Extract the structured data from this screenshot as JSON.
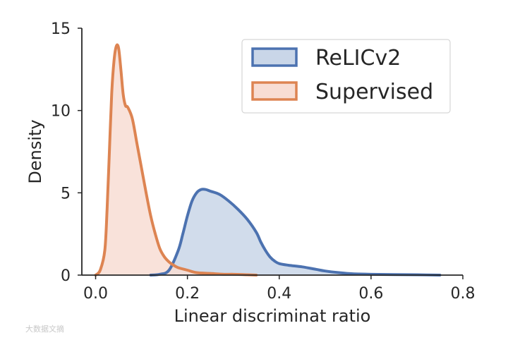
{
  "chart_data": {
    "type": "area",
    "title": "",
    "xlabel": "Linear discriminat ratio",
    "ylabel": "Density",
    "xlim": [
      -0.03,
      0.8
    ],
    "ylim": [
      0,
      15
    ],
    "xticks": [
      0.0,
      0.2,
      0.4,
      0.6,
      0.8
    ],
    "xtick_labels": [
      "0.0",
      "0.2",
      "0.4",
      "0.6",
      "0.8"
    ],
    "yticks": [
      0,
      5,
      10,
      15
    ],
    "ytick_labels": [
      "0",
      "5",
      "10",
      "15"
    ],
    "grid": false,
    "legend_position": "top-right",
    "series": [
      {
        "name": "ReLICv2",
        "line_color": "#4c72b0",
        "fill_color": "#c9d6e8",
        "x": [
          0.12,
          0.14,
          0.16,
          0.18,
          0.19,
          0.2,
          0.21,
          0.22,
          0.23,
          0.24,
          0.25,
          0.27,
          0.29,
          0.31,
          0.33,
          0.35,
          0.36,
          0.37,
          0.38,
          0.39,
          0.4,
          0.42,
          0.45,
          0.48,
          0.5,
          0.53,
          0.56,
          0.6,
          0.65,
          0.7,
          0.75
        ],
        "y": [
          0.0,
          0.05,
          0.3,
          1.5,
          2.5,
          3.6,
          4.5,
          5.0,
          5.2,
          5.2,
          5.1,
          4.9,
          4.5,
          4.0,
          3.4,
          2.6,
          2.0,
          1.5,
          1.1,
          0.85,
          0.7,
          0.6,
          0.5,
          0.35,
          0.25,
          0.15,
          0.08,
          0.05,
          0.03,
          0.02,
          0.0
        ]
      },
      {
        "name": "Supervised",
        "line_color": "#dd8452",
        "fill_color": "#f8ddd3",
        "x": [
          0.0,
          0.01,
          0.02,
          0.025,
          0.03,
          0.035,
          0.04,
          0.045,
          0.05,
          0.055,
          0.06,
          0.065,
          0.07,
          0.08,
          0.09,
          0.1,
          0.11,
          0.12,
          0.13,
          0.14,
          0.15,
          0.16,
          0.17,
          0.18,
          0.2,
          0.22,
          0.25,
          0.28,
          0.3,
          0.33,
          0.35
        ],
        "y": [
          0.0,
          0.3,
          1.5,
          4.0,
          7.5,
          11.0,
          13.0,
          13.9,
          13.8,
          12.5,
          11.0,
          10.3,
          10.2,
          9.5,
          8.0,
          6.5,
          5.0,
          3.6,
          2.5,
          1.6,
          1.1,
          0.8,
          0.6,
          0.45,
          0.3,
          0.15,
          0.1,
          0.05,
          0.05,
          0.02,
          0.0
        ]
      }
    ]
  },
  "watermark": "大数据文摘"
}
